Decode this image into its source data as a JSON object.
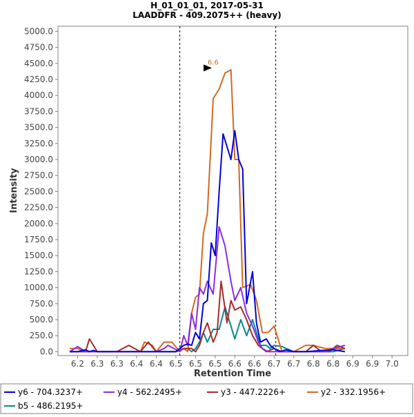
{
  "chart_data": {
    "type": "line",
    "title": "H_01_01_01, 2017-05-31",
    "subtitle": "LAADDFR - 409.2075++ (heavy)",
    "xlabel": "Retention Time",
    "ylabel": "Intensity",
    "xlim": [
      6.15,
      7.04
    ],
    "ylim": [
      -60,
      5080
    ],
    "x_ticks": [
      "6.2",
      "6.3",
      "6.3",
      "6.4",
      "6.4",
      "6.5",
      "6.5",
      "6.5",
      "6.6",
      "6.6",
      "6.7",
      "6.7",
      "6.8",
      "6.8",
      "6.9",
      "6.9",
      "7.0"
    ],
    "y_ticks": [
      "0.0",
      "250.0",
      "500.0",
      "750.0",
      "1000.0",
      "1250.0",
      "1500.0",
      "1750.0",
      "2000.0",
      "2250.0",
      "2500.0",
      "2750.0",
      "3000.0",
      "3250.0",
      "3500.0",
      "3750.0",
      "4000.0",
      "4250.0",
      "4500.0",
      "4750.0",
      "5000.0"
    ],
    "vlines": [
      6.46,
      6.704
    ],
    "peak_annotation": {
      "label": "6.6",
      "x": 6.545,
      "y": 4430
    },
    "legend": {
      "placement": "bottom"
    },
    "grid": false,
    "series": [
      {
        "name": "y6 - 704.3237+",
        "color": "#0000dd",
        "x": [
          6.18,
          6.2,
          6.22,
          6.23,
          6.24,
          6.25,
          6.27,
          6.3,
          6.33,
          6.36,
          6.4,
          6.43,
          6.45,
          6.47,
          6.48,
          6.49,
          6.5,
          6.51,
          6.52,
          6.53,
          6.54,
          6.55,
          6.56,
          6.57,
          6.59,
          6.6,
          6.61,
          6.62,
          6.63,
          6.645,
          6.655,
          6.665,
          6.68,
          6.69,
          6.7,
          6.715,
          6.73,
          6.75,
          6.78,
          6.82,
          6.85,
          6.88
        ],
        "y": [
          0,
          0,
          30,
          0,
          20,
          0,
          0,
          0,
          0,
          0,
          0,
          0,
          0,
          100,
          120,
          100,
          300,
          200,
          750,
          800,
          1700,
          1500,
          2500,
          3400,
          3000,
          3450,
          3000,
          2850,
          750,
          1250,
          450,
          150,
          200,
          100,
          50,
          0,
          30,
          0,
          0,
          20,
          30,
          0
        ]
      },
      {
        "name": "y4 - 562.2495+",
        "color": "#8a2be2",
        "x": [
          6.18,
          6.2,
          6.22,
          6.24,
          6.27,
          6.3,
          6.33,
          6.36,
          6.4,
          6.42,
          6.43,
          6.46,
          6.47,
          6.48,
          6.49,
          6.5,
          6.51,
          6.52,
          6.53,
          6.545,
          6.56,
          6.575,
          6.59,
          6.6,
          6.615,
          6.63,
          6.645,
          6.66,
          6.67,
          6.685,
          6.7,
          6.72,
          6.75,
          6.8,
          6.83,
          6.85,
          6.88
        ],
        "y": [
          0,
          80,
          0,
          0,
          0,
          0,
          0,
          0,
          0,
          50,
          100,
          0,
          250,
          100,
          600,
          350,
          1000,
          900,
          1100,
          900,
          1950,
          1650,
          1100,
          800,
          1000,
          600,
          400,
          150,
          50,
          0,
          0,
          0,
          0,
          0,
          0,
          50,
          100
        ]
      },
      {
        "name": "y3 - 447.2226+",
        "color": "#a52a2a",
        "x": [
          6.18,
          6.2,
          6.22,
          6.23,
          6.25,
          6.28,
          6.3,
          6.33,
          6.36,
          6.38,
          6.4,
          6.43,
          6.45,
          6.47,
          6.49,
          6.5,
          6.51,
          6.52,
          6.53,
          6.545,
          6.555,
          6.565,
          6.58,
          6.59,
          6.6,
          6.615,
          6.63,
          6.645,
          6.66,
          6.68,
          6.7,
          6.72,
          6.75,
          6.78,
          6.8,
          6.82,
          6.84,
          6.86,
          6.88
        ],
        "y": [
          0,
          0,
          0,
          200,
          0,
          0,
          0,
          100,
          0,
          150,
          0,
          0,
          0,
          50,
          50,
          0,
          100,
          300,
          450,
          150,
          300,
          1100,
          450,
          800,
          650,
          700,
          500,
          250,
          100,
          0,
          50,
          0,
          0,
          0,
          100,
          0,
          0,
          100,
          50
        ]
      },
      {
        "name": "y2 - 332.1956+",
        "color": "#d2691e",
        "x": [
          6.18,
          6.2,
          6.22,
          6.24,
          6.27,
          6.3,
          6.33,
          6.36,
          6.37,
          6.39,
          6.4,
          6.42,
          6.44,
          6.46,
          6.47,
          6.48,
          6.49,
          6.5,
          6.51,
          6.52,
          6.53,
          6.545,
          6.56,
          6.575,
          6.59,
          6.6,
          6.61,
          6.62,
          6.64,
          6.655,
          6.67,
          6.685,
          6.7,
          6.71,
          6.72,
          6.75,
          6.78,
          6.8,
          6.83,
          6.85,
          6.88
        ],
        "y": [
          50,
          50,
          0,
          0,
          0,
          0,
          0,
          0,
          150,
          100,
          0,
          150,
          150,
          0,
          50,
          0,
          600,
          850,
          900,
          1850,
          2150,
          3950,
          4100,
          4350,
          4400,
          3000,
          3000,
          1000,
          1050,
          800,
          300,
          300,
          400,
          200,
          0,
          0,
          100,
          100,
          50,
          50,
          50
        ]
      },
      {
        "name": "b5 - 486.2195+",
        "color": "#008b8b",
        "x": [
          6.18,
          6.2,
          6.23,
          6.26,
          6.3,
          6.33,
          6.36,
          6.4,
          6.43,
          6.45,
          6.47,
          6.48,
          6.49,
          6.5,
          6.51,
          6.52,
          6.53,
          6.545,
          6.56,
          6.575,
          6.59,
          6.6,
          6.615,
          6.63,
          6.645,
          6.655,
          6.665,
          6.68,
          6.69,
          6.7,
          6.72,
          6.75,
          6.8,
          6.85,
          6.88
        ],
        "y": [
          0,
          0,
          0,
          0,
          0,
          0,
          0,
          0,
          0,
          0,
          50,
          50,
          0,
          50,
          150,
          300,
          150,
          350,
          350,
          700,
          400,
          200,
          500,
          250,
          500,
          300,
          100,
          100,
          50,
          100,
          80,
          0,
          0,
          0,
          50
        ]
      }
    ]
  }
}
